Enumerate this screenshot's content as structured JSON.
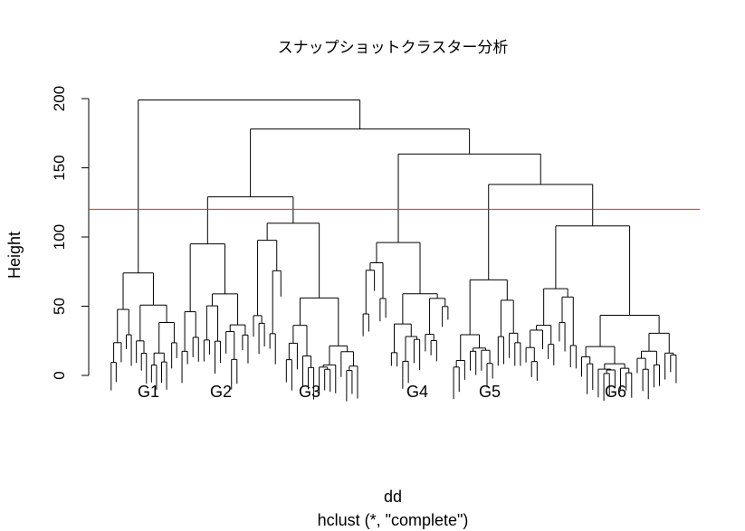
{
  "chart_data": {
    "type": "dendrogram",
    "title": "スナップショットクラスター分析",
    "xlabel": "dd",
    "sub_xlabel": "hclust (*, \"complete\")",
    "ylabel": "Height",
    "ylim": [
      0,
      200
    ],
    "yticks": [
      0,
      50,
      100,
      150,
      200
    ],
    "ytick_labels": [
      "0",
      "50",
      "100",
      "150",
      "200"
    ],
    "cut_height": 120,
    "cut_line_color": "#cc3333",
    "groups": [
      "G1",
      "G2",
      "G3",
      "G4",
      "G5",
      "G6"
    ],
    "merges": [
      {
        "name": "root",
        "height": 199
      },
      {
        "name": "G2-G6",
        "height": 178
      },
      {
        "name": "G4-G6",
        "height": 160
      },
      {
        "name": "G5-G6",
        "height": 138
      },
      {
        "name": "G2-G3",
        "height": 129
      },
      {
        "name": "G3",
        "height": 110
      },
      {
        "name": "G6",
        "height": 108
      },
      {
        "name": "G4",
        "height": 96
      },
      {
        "name": "G2",
        "height": 95
      },
      {
        "name": "G1",
        "height": 74
      },
      {
        "name": "G5",
        "height": 69
      }
    ]
  }
}
